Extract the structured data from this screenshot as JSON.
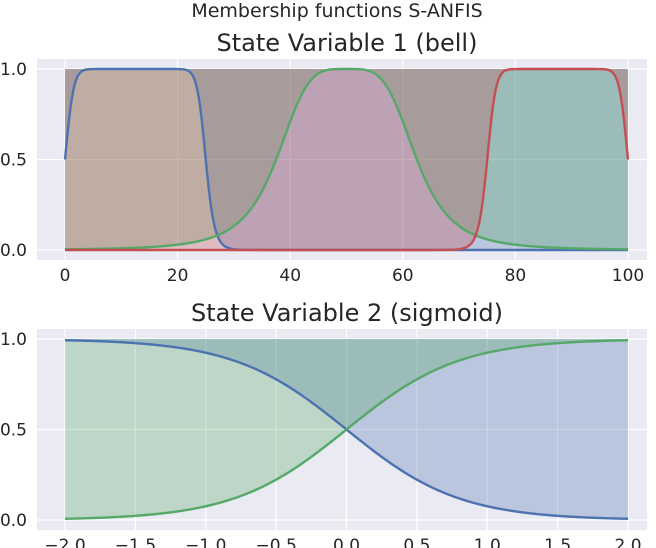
{
  "figure": {
    "suptitle": "Membership functions S-ANFIS"
  },
  "colors": {
    "blue": "#4c72b0",
    "green": "#55a868",
    "red": "#c44e52",
    "axes_bg": "#eaeaf2",
    "grid": "#ffffff"
  },
  "chart_data": [
    {
      "type": "area",
      "title": "State Variable 1 (bell)",
      "xlabel": "",
      "ylabel": "",
      "xlim": [
        0,
        100
      ],
      "ylim": [
        0,
        1
      ],
      "xticks": [
        0,
        20,
        40,
        60,
        80,
        100
      ],
      "yticks": [
        0.0,
        0.5,
        1.0
      ],
      "xtick_labels": [
        "0",
        "20",
        "40",
        "60",
        "80",
        "100"
      ],
      "ytick_labels": [
        "0.0",
        "0.5",
        "1.0"
      ],
      "grid": true,
      "series": [
        {
          "color": "blue",
          "function": "bell",
          "params": {
            "a": 12.5,
            "b": 8,
            "c": 12.5
          }
        },
        {
          "color": "green",
          "function": "bell",
          "params": {
            "a": 12.5,
            "b": 2,
            "c": 50
          }
        },
        {
          "color": "red",
          "function": "bell",
          "params": {
            "a": 12.5,
            "b": 8,
            "c": 87.5
          }
        }
      ]
    },
    {
      "type": "area",
      "title": "State Variable 2 (sigmoid)",
      "xlabel": "",
      "ylabel": "",
      "xlim": [
        -2.0,
        2.0
      ],
      "ylim": [
        0,
        1
      ],
      "xticks": [
        -2.0,
        -1.5,
        -1.0,
        -0.5,
        0.0,
        0.5,
        1.0,
        1.5,
        2.0
      ],
      "yticks": [
        0.0,
        0.5,
        1.0
      ],
      "xtick_labels": [
        "−2.0",
        "−1.5",
        "−1.0",
        "−0.5",
        "0.0",
        "0.5",
        "1.0",
        "1.5",
        "2.0"
      ],
      "ytick_labels": [
        "0.0",
        "0.5",
        "1.0"
      ],
      "grid": true,
      "series": [
        {
          "color": "blue",
          "function": "sigmoid",
          "params": {
            "c": 0,
            "s": -2.5
          }
        },
        {
          "color": "green",
          "function": "sigmoid",
          "params": {
            "c": 0,
            "s": 2.5
          }
        }
      ]
    }
  ]
}
